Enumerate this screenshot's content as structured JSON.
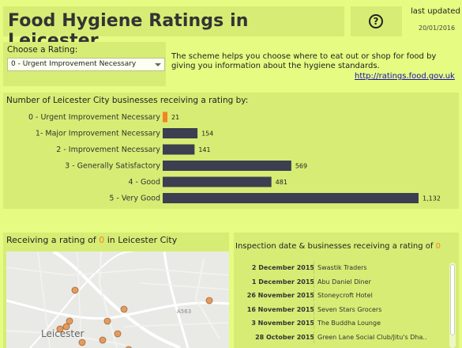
{
  "header": {
    "title": "Food Hygiene Ratings in Leicester",
    "help_icon": "question-circle-icon",
    "updated_label": "last updated",
    "updated_date": "20/01/2016"
  },
  "filter": {
    "label": "Choose a Rating:",
    "selected": "0 - Urgent Improvement Necessary"
  },
  "description": {
    "text": "The scheme helps you choose where to eat out or shop for food by giving you information about the hygiene standards.",
    "link": "http://ratings.food.gov.uk"
  },
  "chart_data": {
    "type": "bar",
    "orientation": "horizontal",
    "title": "Number of Leicester City businesses receiving a rating by:",
    "categories": [
      "0 - Urgent Improvement Necessary",
      "1- Major Improvement Necessary",
      "2 - Improvement Necessary",
      "3 - Generally Satisfactory",
      "4 - Good",
      "5 - Very Good"
    ],
    "values": [
      21,
      154,
      141,
      569,
      481,
      1132
    ],
    "data_labels": [
      "21",
      "154",
      "141",
      "569",
      "481",
      "1,132"
    ],
    "highlighted_category": "0 - Urgent Improvement Necessary",
    "highlight_color": "#f58220",
    "bar_color": "#3b3f4f",
    "xlim": [
      0,
      1132
    ],
    "grid": false
  },
  "map": {
    "title_prefix": "Receiving a rating of ",
    "title_value": "0",
    "title_suffix": " in Leicester City",
    "place_label": "Leicester",
    "road_label": "A563",
    "marker_color": "#e79a5c"
  },
  "list": {
    "title_prefix": "Inspection date & businesses receiving a rating of ",
    "title_value": "0",
    "rows": [
      {
        "date": "2 December 2015",
        "name": "Swastik Traders"
      },
      {
        "date": "1 December 2015",
        "name": "Abu Daniel Diner"
      },
      {
        "date": "26 November 2015",
        "name": "Stoneycroft Hotel"
      },
      {
        "date": "16 November 2015",
        "name": "Seven Stars Grocers"
      },
      {
        "date": "3 November 2015",
        "name": "The Buddha Lounge"
      },
      {
        "date": "28 October 2015",
        "name": "Green Lane Social Club/Jitu's Dha.."
      }
    ]
  }
}
